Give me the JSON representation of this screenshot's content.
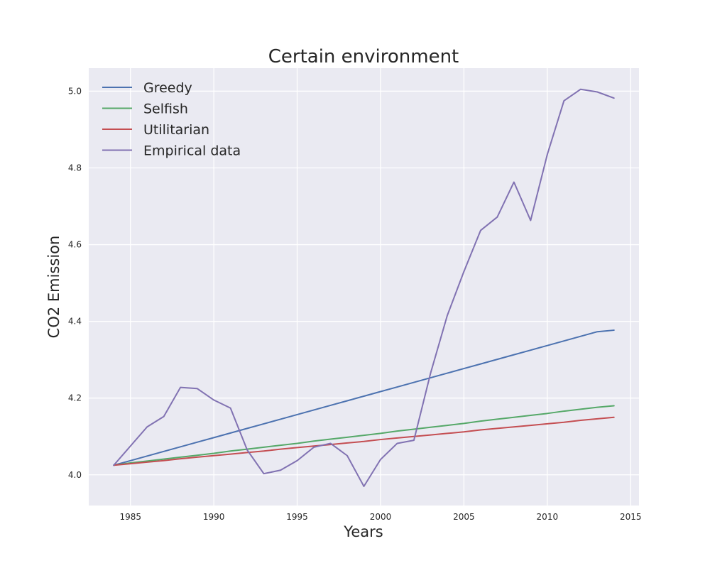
{
  "chart_data": {
    "type": "line",
    "title": "Certain environment",
    "xlabel": "Years",
    "ylabel": "CO2 Emission",
    "xlim": [
      1982.5,
      2015.5
    ],
    "ylim": [
      3.92,
      5.06
    ],
    "xticks": [
      1985,
      1990,
      1995,
      2000,
      2005,
      2010,
      2015
    ],
    "xtick_labels": [
      "1985",
      "1990",
      "1995",
      "2000",
      "2005",
      "2010",
      "2015"
    ],
    "yticks": [
      4.0,
      4.2,
      4.4,
      4.6,
      4.8,
      5.0
    ],
    "ytick_labels": [
      "4.0",
      "4.2",
      "4.4",
      "4.6",
      "4.8",
      "5.0"
    ],
    "grid": true,
    "legend_position": "upper-left",
    "x": [
      1984,
      1985,
      1986,
      1987,
      1988,
      1989,
      1990,
      1991,
      1992,
      1993,
      1994,
      1995,
      1996,
      1997,
      1998,
      1999,
      2000,
      2001,
      2002,
      2003,
      2004,
      2005,
      2006,
      2007,
      2008,
      2009,
      2010,
      2011,
      2012,
      2013,
      2014
    ],
    "series": [
      {
        "name": "Greedy",
        "color": "#4c72b0",
        "values": [
          4.025,
          4.037,
          4.049,
          4.061,
          4.073,
          4.085,
          4.097,
          4.109,
          4.121,
          4.133,
          4.145,
          4.157,
          4.169,
          4.181,
          4.193,
          4.205,
          4.217,
          4.229,
          4.241,
          4.253,
          4.265,
          4.277,
          4.289,
          4.301,
          4.313,
          4.325,
          4.337,
          4.349,
          4.361,
          4.373,
          4.377
        ]
      },
      {
        "name": "Selfish",
        "color": "#55a868",
        "values": [
          4.025,
          4.031,
          4.036,
          4.041,
          4.046,
          4.051,
          4.056,
          4.062,
          4.067,
          4.072,
          4.077,
          4.082,
          4.088,
          4.093,
          4.098,
          4.103,
          4.108,
          4.114,
          4.119,
          4.124,
          4.129,
          4.134,
          4.14,
          4.145,
          4.15,
          4.155,
          4.16,
          4.166,
          4.171,
          4.176,
          4.18
        ]
      },
      {
        "name": "Utilitarian",
        "color": "#c44e52",
        "values": [
          4.025,
          4.029,
          4.033,
          4.037,
          4.042,
          4.046,
          4.05,
          4.054,
          4.058,
          4.062,
          4.067,
          4.071,
          4.075,
          4.079,
          4.083,
          4.087,
          4.092,
          4.096,
          4.1,
          4.104,
          4.108,
          4.112,
          4.117,
          4.121,
          4.125,
          4.129,
          4.133,
          4.137,
          4.142,
          4.146,
          4.15
        ]
      },
      {
        "name": "Empirical data",
        "color": "#8172b2",
        "values": [
          4.025,
          4.075,
          4.125,
          4.152,
          4.228,
          4.225,
          4.195,
          4.174,
          4.065,
          4.003,
          4.012,
          4.037,
          4.072,
          4.082,
          4.05,
          3.97,
          4.04,
          4.082,
          4.09,
          4.265,
          4.415,
          4.53,
          4.637,
          4.672,
          4.763,
          4.663,
          4.835,
          4.975,
          5.005,
          4.998,
          4.982
        ]
      }
    ]
  }
}
